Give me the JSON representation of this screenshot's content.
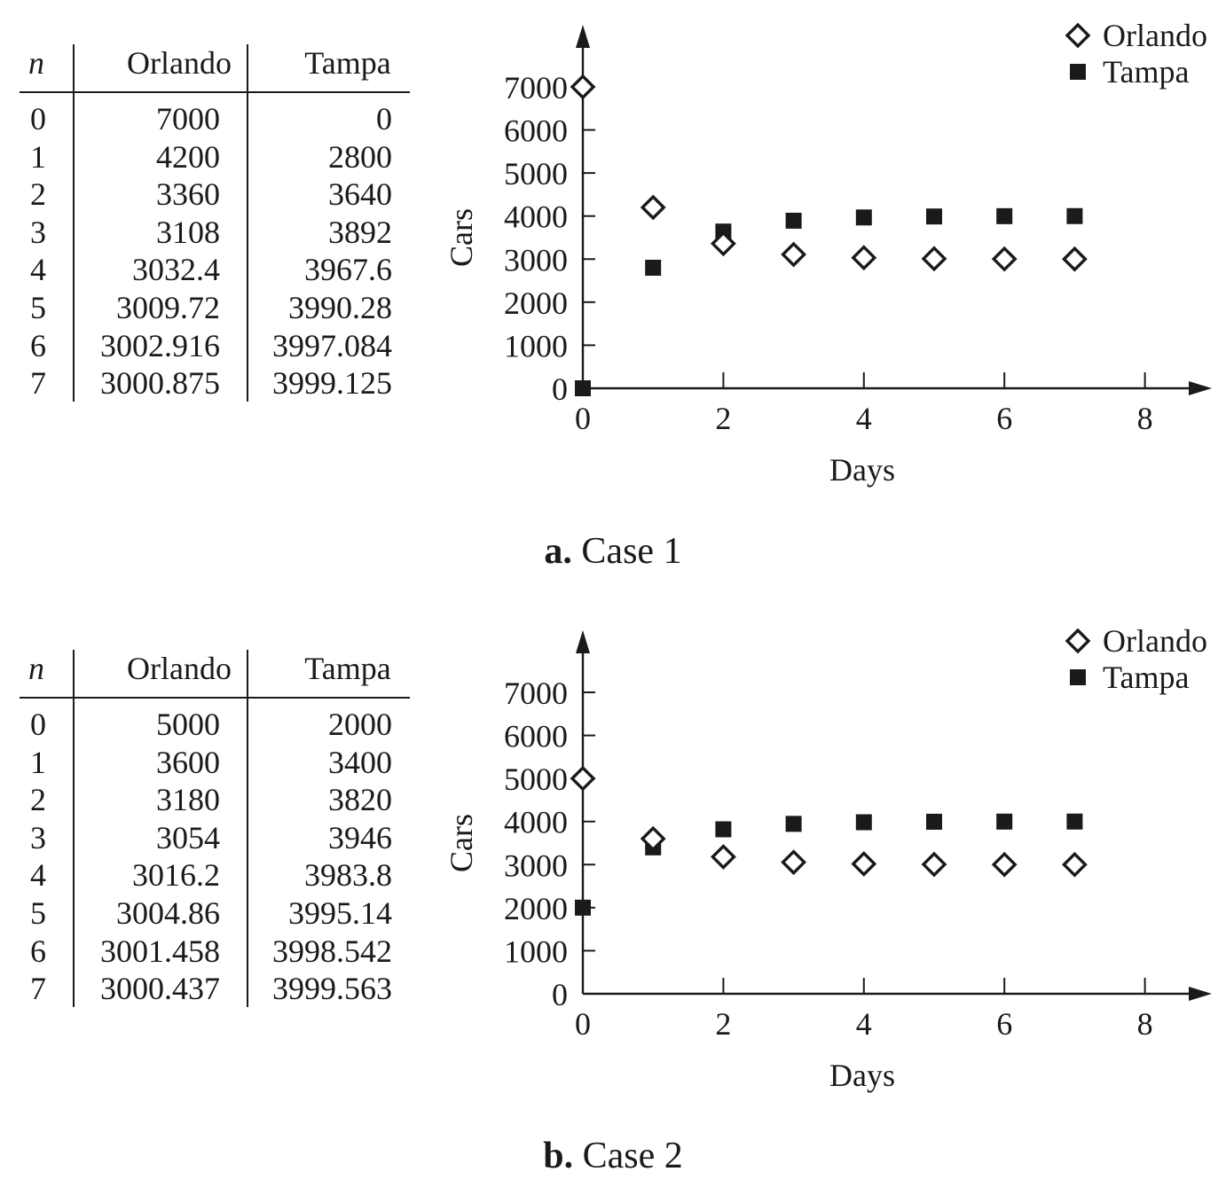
{
  "chart_data": [
    {
      "type": "scatter",
      "caption_letter": "a.",
      "caption_text": "Case 1",
      "table": {
        "headers": [
          "n",
          "Orlando",
          "Tampa"
        ],
        "rows": [
          [
            "0",
            "7000",
            "0"
          ],
          [
            "1",
            "4200",
            "2800"
          ],
          [
            "2",
            "3360",
            "3640"
          ],
          [
            "3",
            "3108",
            "3892"
          ],
          [
            "4",
            "3032.4",
            "3967.6"
          ],
          [
            "5",
            "3009.72",
            "3990.28"
          ],
          [
            "6",
            "3002.916",
            "3997.084"
          ],
          [
            "7",
            "3000.875",
            "3999.125"
          ]
        ]
      },
      "xlabel": "Days",
      "ylabel": "Cars",
      "xlim": [
        0,
        8.5
      ],
      "ylim": [
        0,
        8000
      ],
      "xticks": [
        0,
        2,
        4,
        6,
        8
      ],
      "yticks": [
        0,
        1000,
        2000,
        3000,
        4000,
        5000,
        6000,
        7000
      ],
      "grid": false,
      "legend_position": "top-right",
      "series": [
        {
          "name": "Orlando",
          "marker": "diamond-open",
          "x": [
            0,
            1,
            2,
            3,
            4,
            5,
            6,
            7
          ],
          "values": [
            7000,
            4200,
            3360,
            3108,
            3032.4,
            3009.72,
            3002.916,
            3000.875
          ]
        },
        {
          "name": "Tampa",
          "marker": "square-filled",
          "x": [
            0,
            1,
            2,
            3,
            4,
            5,
            6,
            7
          ],
          "values": [
            0,
            2800,
            3640,
            3892,
            3967.6,
            3990.28,
            3997.084,
            3999.125
          ]
        }
      ]
    },
    {
      "type": "scatter",
      "caption_letter": "b.",
      "caption_text": "Case 2",
      "table": {
        "headers": [
          "n",
          "Orlando",
          "Tampa"
        ],
        "rows": [
          [
            "0",
            "5000",
            "2000"
          ],
          [
            "1",
            "3600",
            "3400"
          ],
          [
            "2",
            "3180",
            "3820"
          ],
          [
            "3",
            "3054",
            "3946"
          ],
          [
            "4",
            "3016.2",
            "3983.8"
          ],
          [
            "5",
            "3004.86",
            "3995.14"
          ],
          [
            "6",
            "3001.458",
            "3998.542"
          ],
          [
            "7",
            "3000.437",
            "3999.563"
          ]
        ]
      },
      "xlabel": "Days",
      "ylabel": "Cars",
      "xlim": [
        0,
        8.5
      ],
      "ylim": [
        0,
        8000
      ],
      "xticks": [
        0,
        2,
        4,
        6,
        8
      ],
      "yticks": [
        0,
        1000,
        2000,
        3000,
        4000,
        5000,
        6000,
        7000
      ],
      "grid": false,
      "legend_position": "top-right",
      "series": [
        {
          "name": "Orlando",
          "marker": "diamond-open",
          "x": [
            0,
            1,
            2,
            3,
            4,
            5,
            6,
            7
          ],
          "values": [
            5000,
            3600,
            3180,
            3054,
            3016.2,
            3004.86,
            3001.458,
            3000.437
          ]
        },
        {
          "name": "Tampa",
          "marker": "square-filled",
          "x": [
            0,
            1,
            2,
            3,
            4,
            5,
            6,
            7
          ],
          "values": [
            2000,
            3400,
            3820,
            3946,
            3983.8,
            3995.14,
            3998.542,
            3999.563
          ]
        }
      ]
    }
  ]
}
